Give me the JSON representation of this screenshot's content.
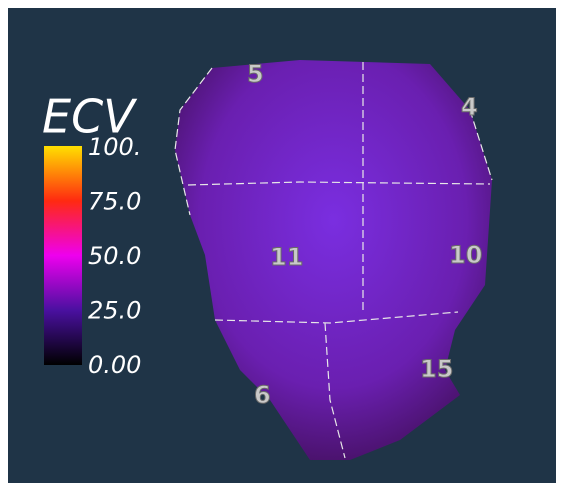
{
  "colorbar": {
    "title": "ECV",
    "ticks": [
      "100.",
      "75.0",
      "50.0",
      "25.0",
      "0.00"
    ]
  },
  "segments": [
    "5",
    "4",
    "11",
    "10",
    "15",
    "6"
  ]
}
